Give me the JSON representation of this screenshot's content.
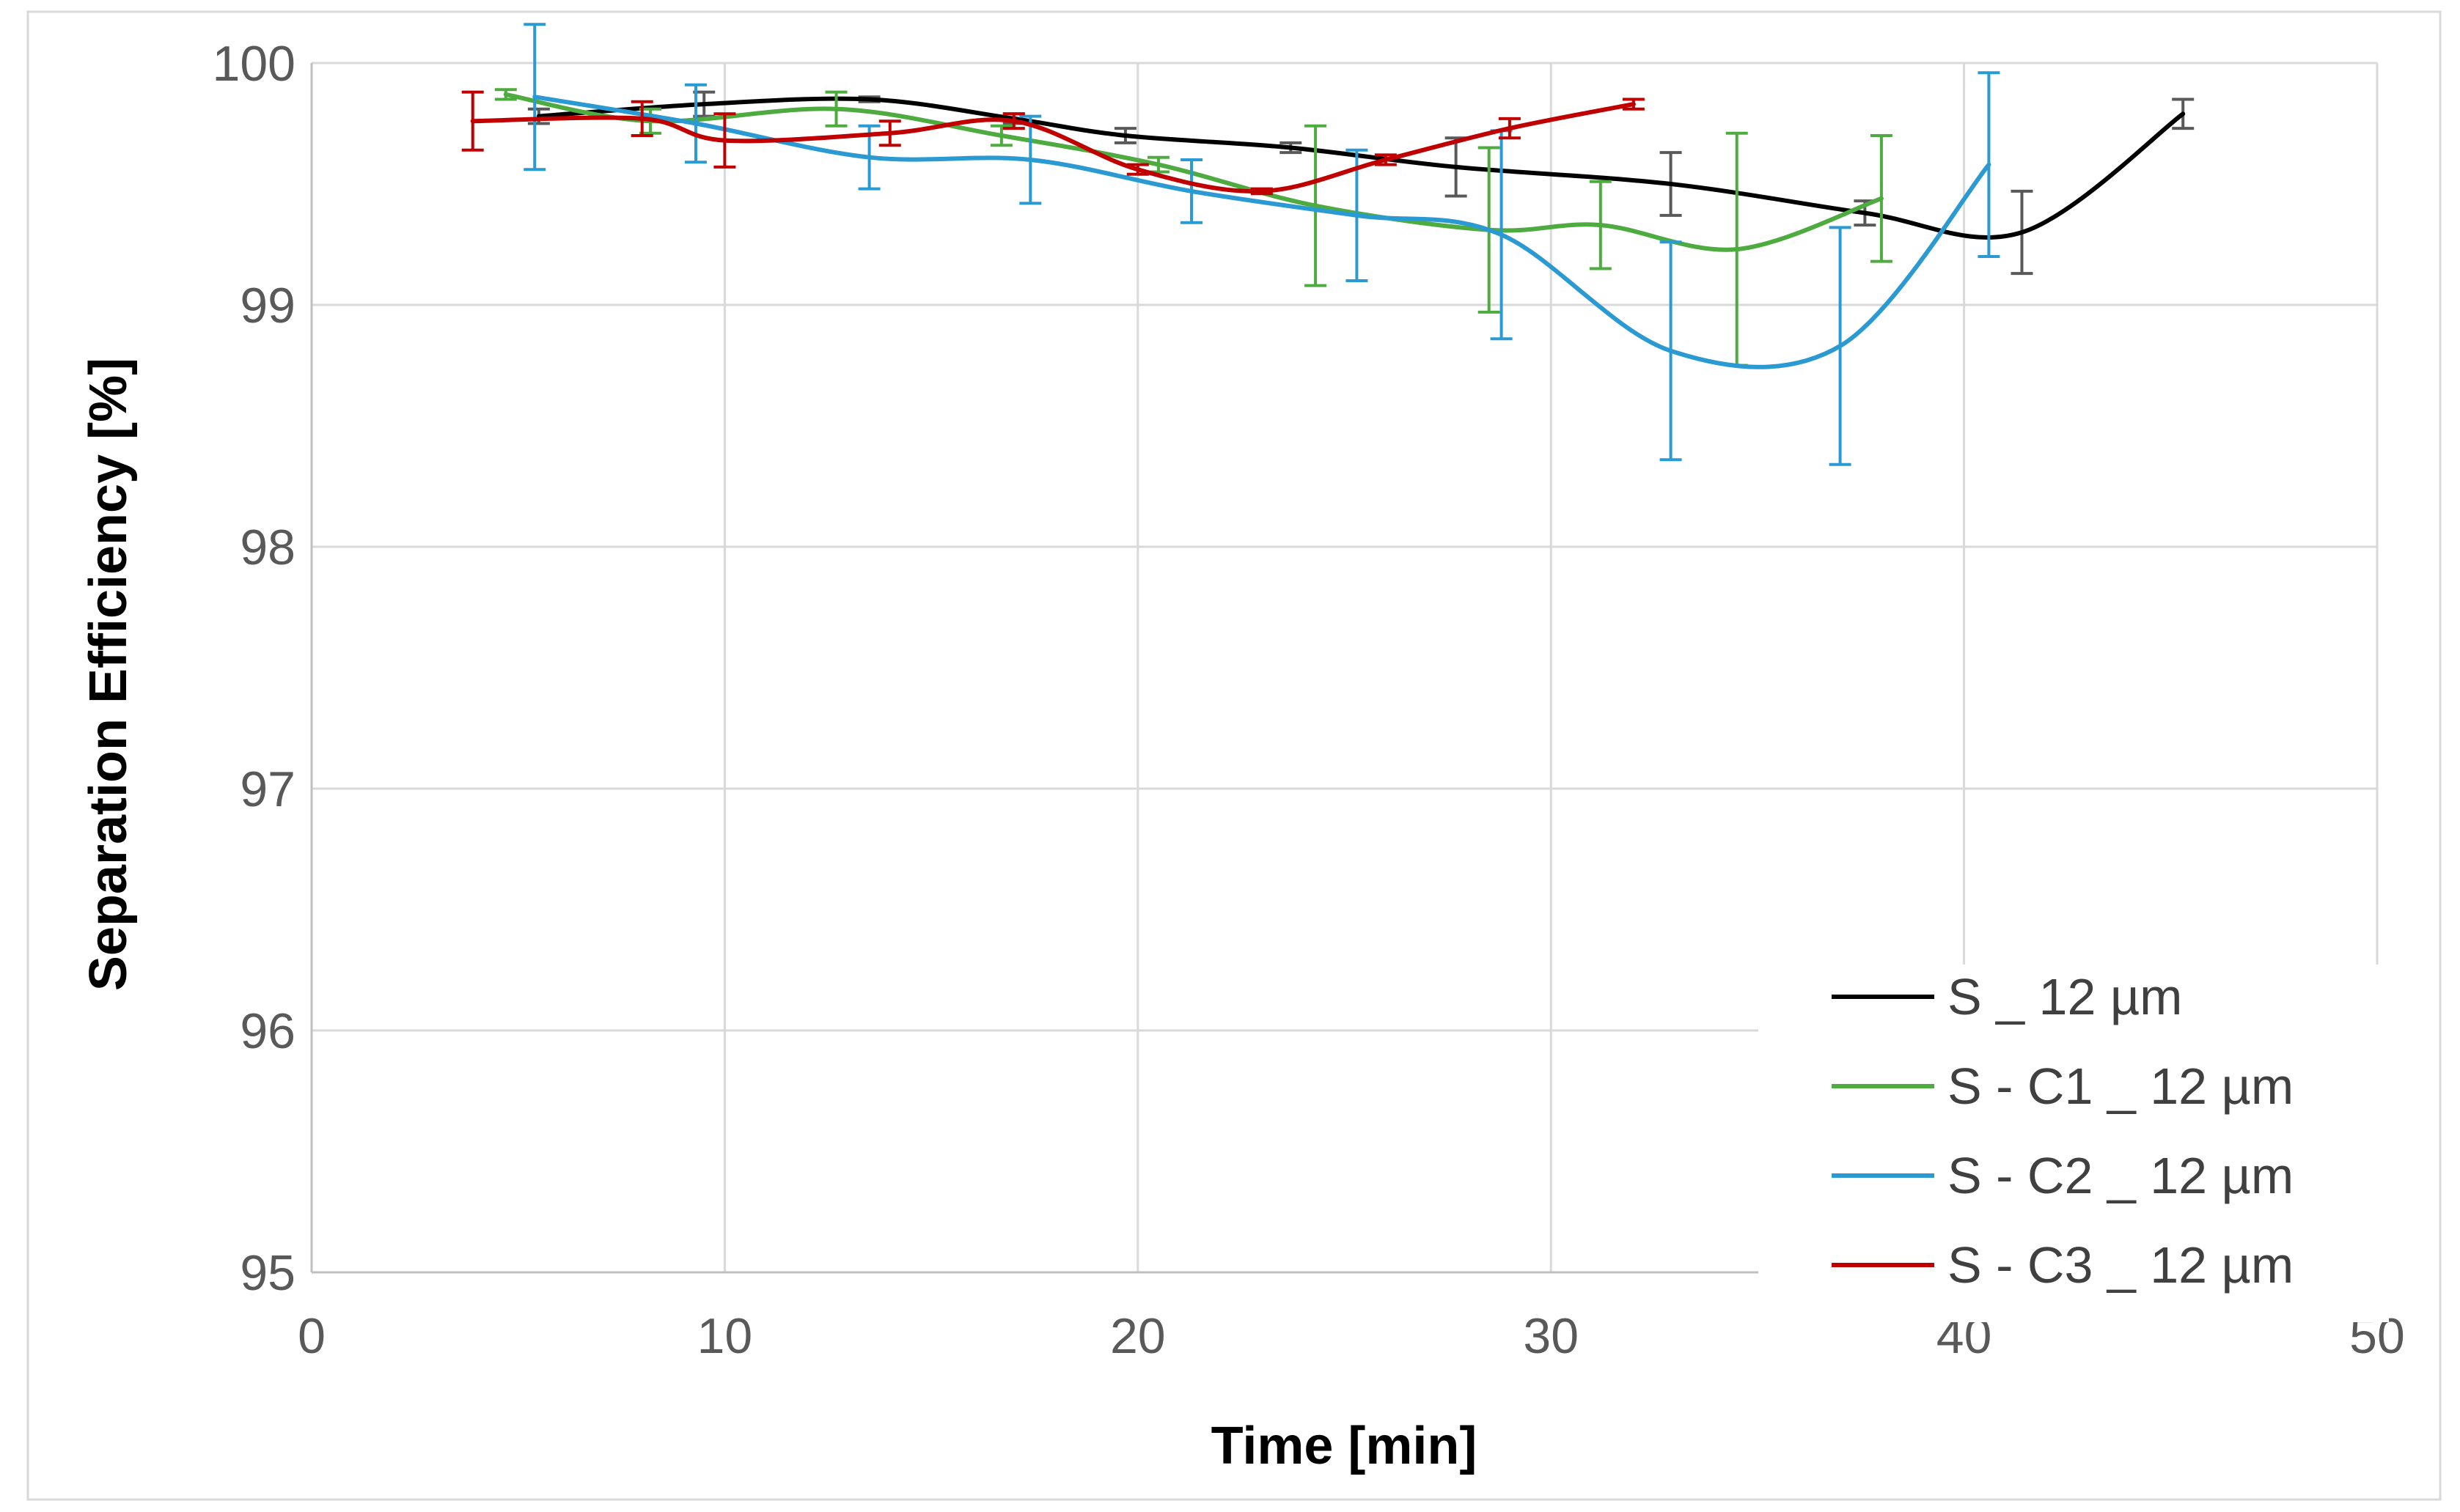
{
  "chart_data": {
    "type": "line",
    "title": "",
    "xlabel": "Time [min]",
    "ylabel": "Separation Efficiency [%]",
    "xlim": [
      0,
      50
    ],
    "ylim": [
      95,
      100
    ],
    "xticks": [
      "0",
      "10",
      "20",
      "30",
      "40",
      "50"
    ],
    "yticks": [
      "95",
      "96",
      "97",
      "98",
      "99",
      "100"
    ],
    "grid": true,
    "legend_position": "bottom-right",
    "smooth": true,
    "series": [
      {
        "name": "S _ 12 µm",
        "color": "#000000",
        "errorbar_color": "#595959",
        "x": [
          5.5,
          9.5,
          13.5,
          17.0,
          19.7,
          23.7,
          27.7,
          32.9,
          37.6,
          41.4,
          45.3
        ],
        "y": [
          99.78,
          99.83,
          99.85,
          99.77,
          99.7,
          99.65,
          99.57,
          99.5,
          99.38,
          99.3,
          99.79
        ],
        "err": [
          0.03,
          0.05,
          0.01,
          0.02,
          0.03,
          0.02,
          0.12,
          0.13,
          0.05,
          0.17,
          0.06
        ]
      },
      {
        "name": "S - C1 _ 12 µm",
        "color": "#4eab3f",
        "errorbar_color": "#4eab3f",
        "x": [
          4.7,
          8.2,
          12.7,
          16.7,
          20.5,
          24.3,
          28.5,
          31.2,
          34.5,
          38.0
        ],
        "y": [
          99.87,
          99.76,
          99.81,
          99.7,
          99.58,
          99.41,
          99.31,
          99.33,
          99.23,
          99.44
        ],
        "err": [
          0.02,
          0.05,
          0.07,
          0.04,
          0.03,
          0.33,
          0.34,
          0.18,
          0.48,
          0.26
        ]
      },
      {
        "name": "S - C2 _ 12 µm",
        "color": "#2b9ad3",
        "errorbar_color": "#2b9ad3",
        "x": [
          5.4,
          9.3,
          13.5,
          17.4,
          21.3,
          25.3,
          28.8,
          32.9,
          37.0,
          40.6
        ],
        "y": [
          99.86,
          99.75,
          99.61,
          99.6,
          99.47,
          99.37,
          99.29,
          98.81,
          98.83,
          99.58
        ],
        "err": [
          0.3,
          0.16,
          0.13,
          0.18,
          0.13,
          0.27,
          0.43,
          0.45,
          0.49,
          0.38
        ]
      },
      {
        "name": "S - C3 _ 12 µm",
        "color": "#c00000",
        "errorbar_color": "#c00000",
        "x": [
          3.9,
          8.0,
          10.0,
          14.0,
          17.0,
          20.0,
          23.0,
          26.0,
          29.0,
          32.0
        ],
        "y": [
          99.76,
          99.77,
          99.68,
          99.71,
          99.76,
          99.56,
          99.47,
          99.6,
          99.73,
          99.83
        ],
        "err": [
          0.12,
          0.07,
          0.11,
          0.05,
          0.03,
          0.02,
          0.01,
          0.02,
          0.04,
          0.02
        ]
      }
    ]
  }
}
